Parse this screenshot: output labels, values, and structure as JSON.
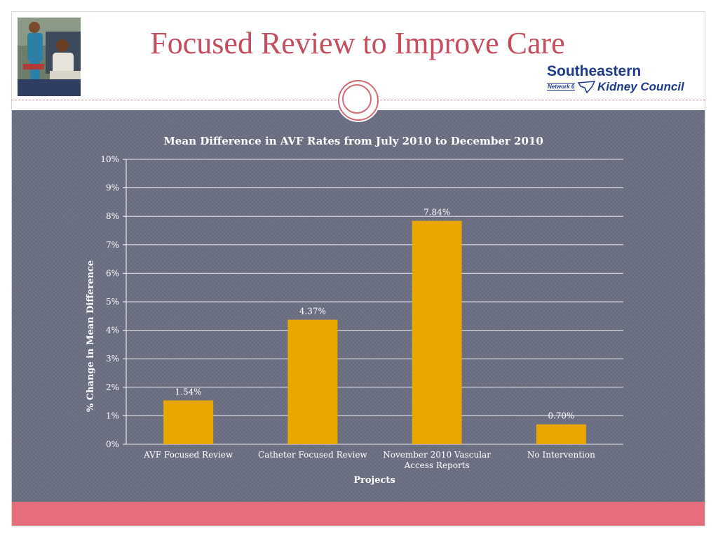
{
  "slide": {
    "title": "Focused Review to Improve Care"
  },
  "logo": {
    "line1": "Southeastern",
    "network": "Network 6",
    "line2": "Kidney Council"
  },
  "colors": {
    "title": "#c44d5e",
    "bar": "#e8a800",
    "background": "#6b6f82",
    "accent_band": "#e66e7c",
    "logo": "#1f3a8a"
  },
  "chart_data": {
    "type": "bar",
    "title": "Mean Difference in AVF Rates from July 2010 to December 2010",
    "xlabel": "Projects",
    "ylabel": "% Change in Mean Difference",
    "categories": [
      "AVF Focused Review",
      "Catheter Focused Review",
      "November 2010 Vascular Access Reports",
      "No Intervention"
    ],
    "values": [
      1.54,
      4.37,
      7.84,
      0.7
    ],
    "data_labels": [
      "1.54%",
      "4.37%",
      "7.84%",
      "0.70%"
    ],
    "ylim": [
      0,
      10
    ],
    "yticks": [
      "0%",
      "1%",
      "2%",
      "3%",
      "4%",
      "5%",
      "6%",
      "7%",
      "8%",
      "9%",
      "10%"
    ],
    "grid": true,
    "legend": "none"
  }
}
